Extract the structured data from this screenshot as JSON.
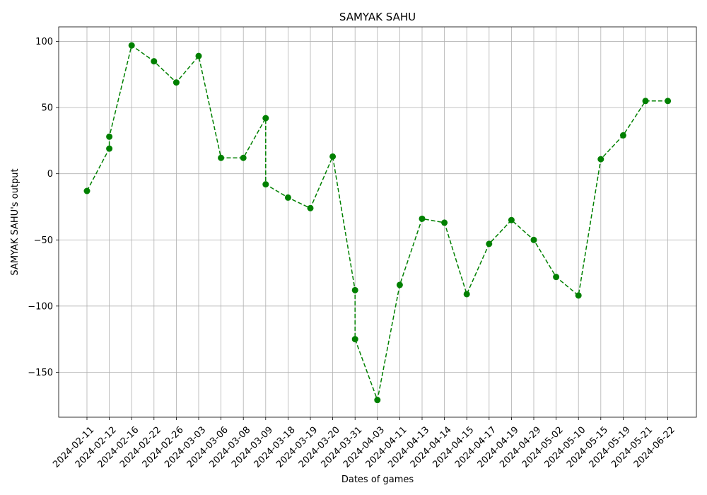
{
  "chart_data": {
    "type": "line",
    "title": "SAMYAK SAHU",
    "xlabel": "Dates of games",
    "ylabel": "SAMYAK SAHU's output",
    "categories": [
      "2024-02-11",
      "2024-02-12",
      "2024-02-16",
      "2024-02-22",
      "2024-02-26",
      "2024-03-03",
      "2024-03-06",
      "2024-03-08",
      "2024-03-09",
      "2024-03-18",
      "2024-03-19",
      "2024-03-20",
      "2024-03-31",
      "2024-04-03",
      "2024-04-11",
      "2024-04-13",
      "2024-04-14",
      "2024-04-15",
      "2024-04-17",
      "2024-04-19",
      "2024-04-29",
      "2024-05-02",
      "2024-05-10",
      "2024-05-15",
      "2024-05-19",
      "2024-05-21",
      "2024-06-22"
    ],
    "points": [
      {
        "x": "2024-02-11",
        "y": -13
      },
      {
        "x": "2024-02-12",
        "y": 19
      },
      {
        "x": "2024-02-12",
        "y": 28
      },
      {
        "x": "2024-02-16",
        "y": 97
      },
      {
        "x": "2024-02-22",
        "y": 85
      },
      {
        "x": "2024-02-26",
        "y": 69
      },
      {
        "x": "2024-03-03",
        "y": 89
      },
      {
        "x": "2024-03-06",
        "y": 12
      },
      {
        "x": "2024-03-08",
        "y": 12
      },
      {
        "x": "2024-03-09",
        "y": 42
      },
      {
        "x": "2024-03-09",
        "y": -8
      },
      {
        "x": "2024-03-18",
        "y": -18
      },
      {
        "x": "2024-03-19",
        "y": -26
      },
      {
        "x": "2024-03-20",
        "y": 13
      },
      {
        "x": "2024-03-31",
        "y": -88
      },
      {
        "x": "2024-03-31",
        "y": -125
      },
      {
        "x": "2024-04-03",
        "y": -171
      },
      {
        "x": "2024-04-11",
        "y": -84
      },
      {
        "x": "2024-04-13",
        "y": -34
      },
      {
        "x": "2024-04-14",
        "y": -37
      },
      {
        "x": "2024-04-15",
        "y": -91
      },
      {
        "x": "2024-04-17",
        "y": -53
      },
      {
        "x": "2024-04-19",
        "y": -35
      },
      {
        "x": "2024-04-29",
        "y": -50
      },
      {
        "x": "2024-05-02",
        "y": -78
      },
      {
        "x": "2024-05-10",
        "y": -92
      },
      {
        "x": "2024-05-15",
        "y": 11
      },
      {
        "x": "2024-05-19",
        "y": 29
      },
      {
        "x": "2024-05-21",
        "y": 55
      },
      {
        "x": "2024-06-22",
        "y": 55
      }
    ],
    "yticks": [
      100,
      50,
      0,
      -50,
      -100,
      -150
    ],
    "ylim": [
      -184,
      111
    ],
    "grid": true,
    "line_color": "#008000",
    "line_style": "dashed",
    "marker": "circle"
  }
}
